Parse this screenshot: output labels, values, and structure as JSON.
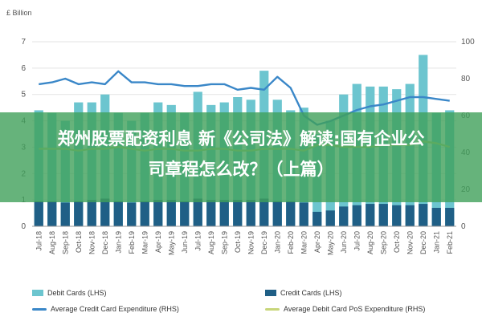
{
  "chart_data": {
    "type": "bar",
    "ylabel_left": "£ Billion",
    "ylim_left": [
      0,
      7
    ],
    "ylim_right": [
      0,
      100
    ],
    "yticks_left": [
      "0",
      "1",
      "2",
      "3",
      "4",
      "5",
      "6",
      "7"
    ],
    "yticks_right": [
      "0",
      "20",
      "40",
      "60",
      "80",
      "100"
    ],
    "categories": [
      "Jul-18",
      "Aug-18",
      "Sep-18",
      "Oct-18",
      "Nov-18",
      "Dec-18",
      "Jan-19",
      "Feb-19",
      "Mar-19",
      "Apr-19",
      "May-19",
      "Jun-19",
      "Jul-19",
      "Aug-19",
      "Sep-19",
      "Oct-19",
      "Nov-19",
      "Dec-19",
      "Jan-20",
      "Feb-20",
      "Mar-20",
      "Apr-20",
      "May-20",
      "Jun-20",
      "Jul-20",
      "Aug-20",
      "Sep-20",
      "Oct-20",
      "Nov-20",
      "Dec-20",
      "Jan-21",
      "Feb-21"
    ],
    "series": [
      {
        "name": "Debit Cards (LHS)",
        "axis": "left",
        "type": "bar",
        "color": "#6cc5cf",
        "values": [
          4.4,
          4.3,
          4.0,
          4.7,
          4.7,
          5.0,
          4.3,
          4.0,
          4.3,
          4.7,
          4.6,
          4.3,
          5.1,
          4.6,
          4.7,
          4.9,
          4.8,
          5.9,
          4.8,
          4.4,
          4.5,
          3.5,
          4.0,
          5.0,
          5.4,
          5.3,
          5.3,
          5.2,
          5.4,
          6.5,
          4.3,
          4.4
        ]
      },
      {
        "name": "Credit Cards (LHS)",
        "axis": "left",
        "type": "bar",
        "color": "#1f5f86",
        "values": [
          0.95,
          0.95,
          0.9,
          0.95,
          1.0,
          1.05,
          0.95,
          0.9,
          0.95,
          1.0,
          1.0,
          0.95,
          1.05,
          1.0,
          1.0,
          1.0,
          1.0,
          1.05,
          0.95,
          0.95,
          0.9,
          0.55,
          0.6,
          0.75,
          0.8,
          0.85,
          0.85,
          0.8,
          0.8,
          0.85,
          0.7,
          0.7
        ]
      },
      {
        "name": "Average Credit Card Expenditure (RHS)",
        "axis": "right",
        "type": "line",
        "color": "#3a87c8",
        "values": [
          77,
          78,
          80,
          77,
          78,
          77,
          84,
          78,
          78,
          77,
          77,
          76,
          76,
          77,
          77,
          74,
          75,
          74,
          81,
          75,
          60,
          55,
          57,
          60,
          63,
          65,
          66,
          68,
          70,
          70,
          69,
          68
        ]
      },
      {
        "name": "Average Debit Card PoS Expenditure (RHS)",
        "axis": "right",
        "type": "line",
        "color": "#c8d67a",
        "values": [
          42,
          42,
          42,
          41,
          42,
          42,
          43,
          42,
          41,
          42,
          42,
          41,
          41,
          42,
          42,
          41,
          41,
          42,
          42,
          42,
          41,
          44,
          44,
          43,
          43,
          43,
          44,
          44,
          44,
          46,
          45,
          43
        ]
      }
    ],
    "grid": true,
    "legend_position": "bottom"
  },
  "overlay": {
    "line1": "郑州股票配资利息 新《公司法》解读:国有企业公",
    "line2": "司章程怎么改？（上篇）"
  }
}
